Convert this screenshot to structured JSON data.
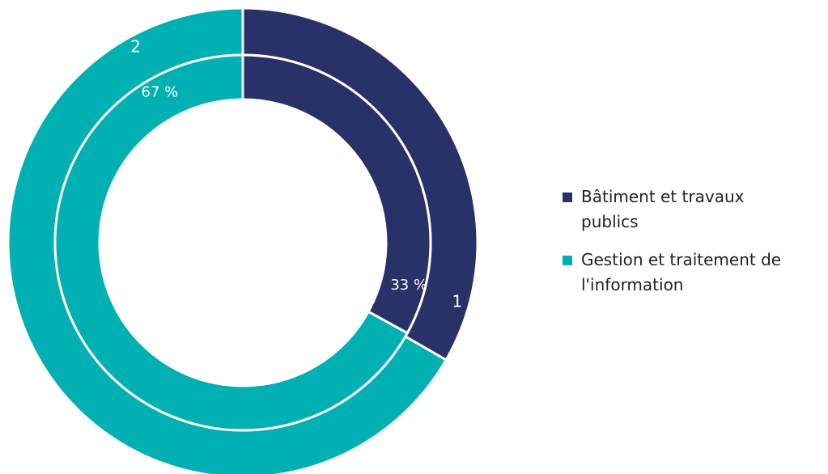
{
  "chart_data": {
    "type": "pie",
    "variant": "double-donut",
    "title": "",
    "categories": [
      "Bâtiment et travaux publics",
      "Gestion et traitement de l'information"
    ],
    "colors": [
      "#283168",
      "#00B0B3"
    ],
    "series": [
      {
        "ring": "outer",
        "values": [
          1,
          2
        ],
        "data_labels": [
          "1",
          "2"
        ]
      },
      {
        "ring": "inner",
        "values": [
          33,
          67
        ],
        "data_labels": [
          "33 %",
          "67 %"
        ]
      }
    ],
    "legend_position": "right"
  },
  "legend": {
    "items": [
      {
        "label_line1": "Bâtiment et travaux",
        "label_line2": "publics",
        "color": "#283168"
      },
      {
        "label_line1": "Gestion et traitement de",
        "label_line2": "l'information",
        "color": "#00B0B3"
      }
    ]
  }
}
